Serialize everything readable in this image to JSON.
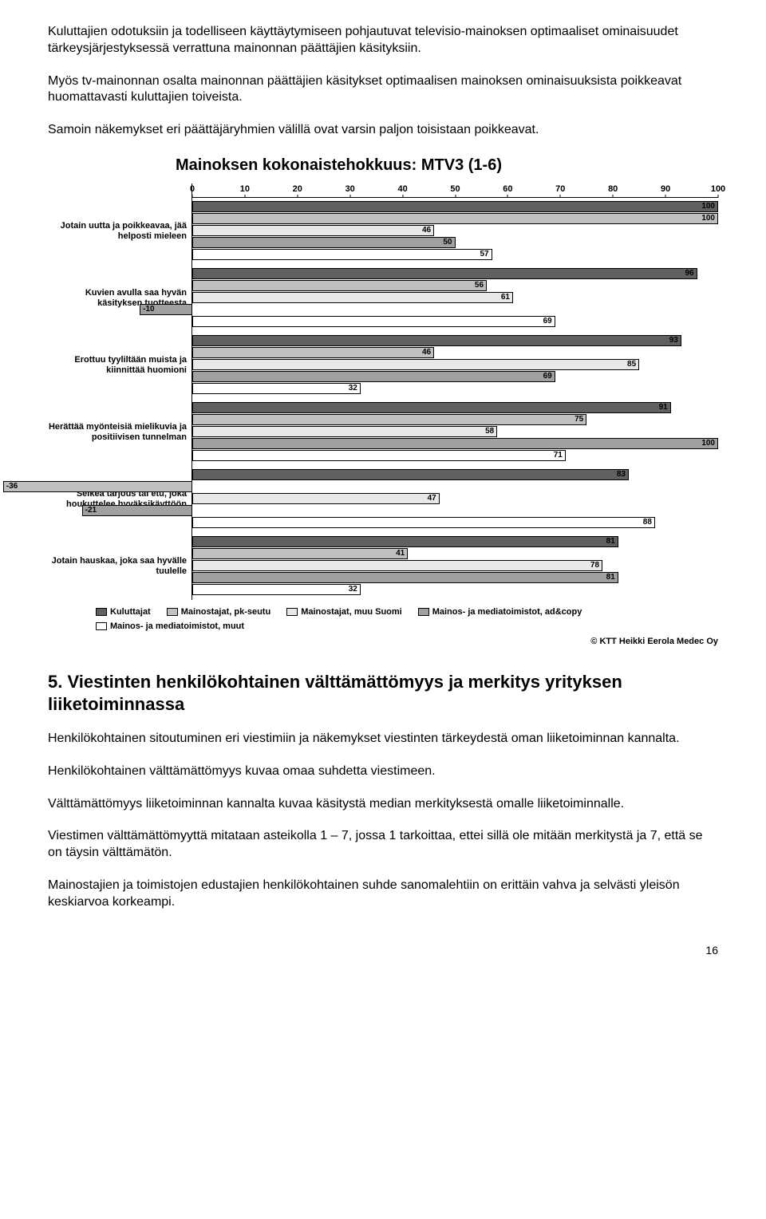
{
  "paragraphs": {
    "p1": "Kuluttajien odotuksiin ja todelliseen käyttäytymiseen pohjautuvat televisio-mainoksen optimaaliset ominaisuudet tärkeysjärjestyksessä verrattuna mainonnan päättäjien käsityksiin.",
    "p2": "Myös tv-mainonnan osalta mainonnan päättäjien käsitykset optimaalisen mainoksen ominaisuuksista poikkeavat huomattavasti kuluttajien toiveista.",
    "p3": "Samoin näkemykset eri päättäjäryhmien välillä ovat varsin paljon toisistaan poikkeavat.",
    "p4": "Henkilökohtainen sitoutuminen eri viestimiin ja näkemykset viestinten tärkeydestä oman liiketoiminnan kannalta.",
    "p5": "Henkilökohtainen välttämättömyys kuvaa omaa suhdetta viestimeen.",
    "p6": "Välttämättömyys liiketoiminnan kannalta kuvaa käsitystä median merkityksestä omalle liiketoiminnalle.",
    "p7": "Viestimen välttämättömyyttä mitataan asteikolla 1 – 7, jossa 1 tarkoittaa, ettei sillä ole mitään merkitystä ja 7, että se on täysin välttämätön.",
    "p8": "Mainostajien ja toimistojen edustajien henkilökohtainen suhde sanomalehtiin on erittäin vahva ja selvästi yleisön keskiarvoa korkeampi."
  },
  "section_heading": "5. Viestinten henkilökohtainen välttämättömyys ja merkitys yrityksen liiketoiminnassa",
  "page_number": "16",
  "chart": {
    "title": "Mainoksen kokonaistehokkuus: MTV3  (1-6)",
    "xmin": 0,
    "xmax": 100,
    "xtick_step": 10,
    "xticks": [
      "0",
      "10",
      "20",
      "30",
      "40",
      "50",
      "60",
      "70",
      "80",
      "90",
      "100"
    ],
    "series_colors": {
      "kuluttajat": "#606060",
      "mainostajat_pk": "#c0c0c0",
      "mainostajat_muu": "#e8e8e8",
      "mainos_media_adcopy": "#a0a0a0",
      "mainos_media_muut": "#ffffff"
    },
    "legend": [
      {
        "label": "Kuluttajat",
        "color_key": "kuluttajat"
      },
      {
        "label": "Mainostajat, pk-seutu",
        "color_key": "mainostajat_pk"
      },
      {
        "label": "Mainostajat, muu Suomi",
        "color_key": "mainostajat_muu"
      },
      {
        "label": "Mainos- ja mediatoimistot, ad&copy",
        "color_key": "mainos_media_adcopy"
      },
      {
        "label": "Mainos- ja mediatoimistot, muut",
        "color_key": "mainos_media_muut"
      }
    ],
    "credit": "© KTT Heikki Eerola Medec Oy",
    "groups": [
      {
        "label": "Jotain uutta ja poikkeavaa, jää helposti mieleen",
        "bars": [
          {
            "series": "kuluttajat",
            "value": 100
          },
          {
            "series": "mainostajat_pk",
            "value": 100
          },
          {
            "series": "mainostajat_muu",
            "value": 46
          },
          {
            "series": "mainos_media_adcopy",
            "value": 50
          },
          {
            "series": "mainos_media_muut",
            "value": 57
          }
        ]
      },
      {
        "label": "Kuvien avulla saa hyvän käsityksen tuotteesta",
        "bars": [
          {
            "series": "kuluttajat",
            "value": 96
          },
          {
            "series": "mainostajat_pk",
            "value": 56
          },
          {
            "series": "mainostajat_muu",
            "value": 61
          },
          {
            "series": "mainos_media_adcopy",
            "value": -10
          },
          {
            "series": "mainos_media_muut",
            "value": 69
          }
        ]
      },
      {
        "label": "Erottuu tyyliltään muista ja kiinnittää huomioni",
        "bars": [
          {
            "series": "kuluttajat",
            "value": 93
          },
          {
            "series": "mainostajat_pk",
            "value": 46
          },
          {
            "series": "mainostajat_muu",
            "value": 85
          },
          {
            "series": "mainos_media_adcopy",
            "value": 69
          },
          {
            "series": "mainos_media_muut",
            "value": 32
          }
        ]
      },
      {
        "label": "Herättää myönteisiä mielikuvia ja positiivisen tunnelman",
        "bars": [
          {
            "series": "kuluttajat",
            "value": 91
          },
          {
            "series": "mainostajat_pk",
            "value": 75
          },
          {
            "series": "mainostajat_muu",
            "value": 58
          },
          {
            "series": "mainos_media_adcopy",
            "value": 100
          },
          {
            "series": "mainos_media_muut",
            "value": 71
          }
        ]
      },
      {
        "label": "Selkeä tarjous tai etu, joka houkuttelee hyväksikäyttöön",
        "bars": [
          {
            "series": "kuluttajat",
            "value": 83
          },
          {
            "series": "mainostajat_pk",
            "value": -36
          },
          {
            "series": "mainostajat_muu",
            "value": 47
          },
          {
            "series": "mainos_media_adcopy",
            "value": -21
          },
          {
            "series": "mainos_media_muut",
            "value": 88
          }
        ]
      },
      {
        "label": "Jotain hauskaa, joka saa hyvälle tuulelle",
        "bars": [
          {
            "series": "kuluttajat",
            "value": 81
          },
          {
            "series": "mainostajat_pk",
            "value": 41
          },
          {
            "series": "mainostajat_muu",
            "value": 78
          },
          {
            "series": "mainos_media_adcopy",
            "value": 81
          },
          {
            "series": "mainos_media_muut",
            "value": 32
          }
        ]
      }
    ]
  }
}
